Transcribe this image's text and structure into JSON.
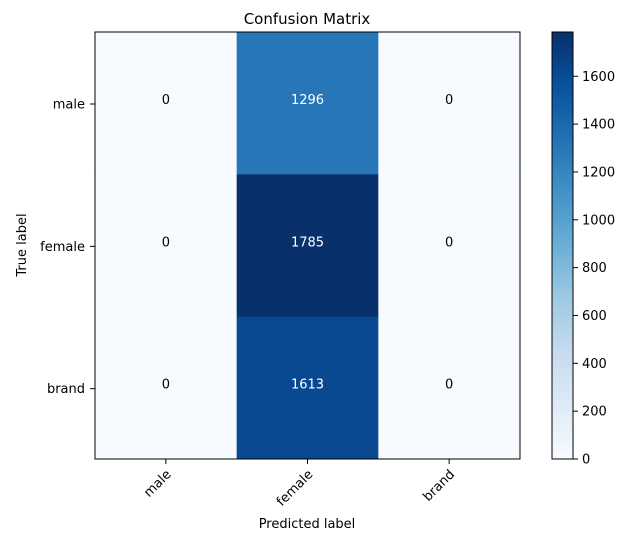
{
  "chart_data": {
    "type": "heatmap",
    "title": "Confusion Matrix",
    "xlabel": "Predicted label",
    "ylabel": "True label",
    "x_categories": [
      "male",
      "female",
      "brand"
    ],
    "y_categories": [
      "male",
      "female",
      "brand"
    ],
    "values": [
      [
        0,
        1296,
        0
      ],
      [
        0,
        1785,
        0
      ],
      [
        0,
        1613,
        0
      ]
    ],
    "colormap": "Blues",
    "colorbar": {
      "range": [
        0,
        1785
      ],
      "ticks": [
        0,
        200,
        400,
        600,
        800,
        1000,
        1200,
        1400,
        1600
      ]
    },
    "colors": {
      "low": "#f7fbff",
      "high": "#08306b",
      "text_light": "#ffffff",
      "text_dark": "#000000"
    }
  }
}
